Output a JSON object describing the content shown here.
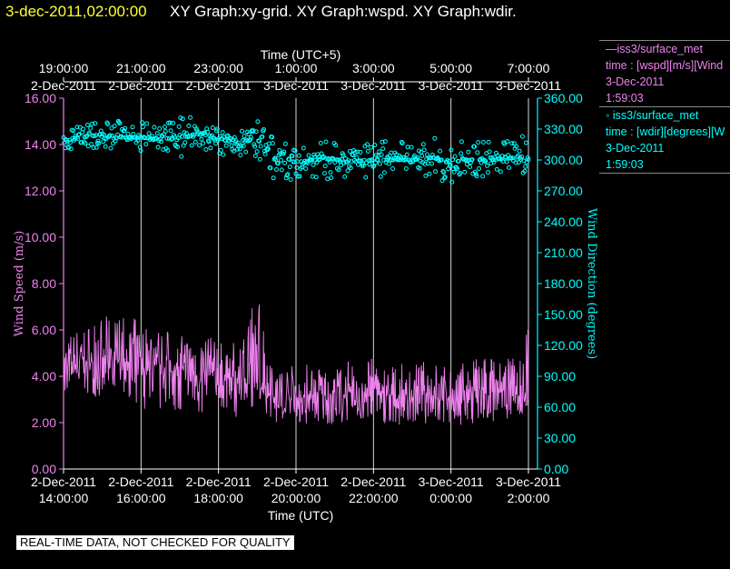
{
  "header": {
    "timestamp": "3-dec-2011,02:00:00",
    "title": "XY Graph:xy-grid.  XY Graph:wspd.  XY Graph:wdir."
  },
  "legend": {
    "items": [
      {
        "name": "—iss3/surface_met",
        "desc": "time : [wspd][m/s][Wind",
        "date": "3-Dec-2011",
        "time": "1:59:03"
      },
      {
        "name": "◦ iss3/surface_met",
        "desc": "time : [wdir][degrees][W",
        "date": "3-Dec-2011",
        "time": "1:59:03"
      }
    ]
  },
  "notice": "REAL-TIME DATA, NOT CHECKED FOR QUALITY",
  "colors": {
    "wspd": "#ee82ee",
    "wdir": "#00ffff",
    "axis": "#ffffff",
    "header_time": "#ffff33"
  },
  "chart_data": {
    "type": "line",
    "x_bottom": {
      "label": "Time (UTC)",
      "range": [
        "2-Dec-2011 14:00:00",
        "3-Dec-2011 02:00:00"
      ],
      "ticks": [
        {
          "value": "2-Dec-2011 14:00:00",
          "date": "2-Dec-2011",
          "time": "14:00:00"
        },
        {
          "value": "2-Dec-2011 16:00:00",
          "date": "2-Dec-2011",
          "time": "16:00:00"
        },
        {
          "value": "2-Dec-2011 18:00:00",
          "date": "2-Dec-2011",
          "time": "18:00:00"
        },
        {
          "value": "2-Dec-2011 20:00:00",
          "date": "2-Dec-2011",
          "time": "20:00:00"
        },
        {
          "value": "2-Dec-2011 22:00:00",
          "date": "2-Dec-2011",
          "time": "22:00:00"
        },
        {
          "value": "3-Dec-2011 00:00:00",
          "date": "3-Dec-2011",
          "time": "0:00:00"
        },
        {
          "value": "3-Dec-2011 02:00:00",
          "date": "3-Dec-2011",
          "time": "2:00:00"
        }
      ]
    },
    "x_top": {
      "label": "Time (UTC+5)",
      "ticks": [
        {
          "value": "2-Dec-2011 19:00:00",
          "date": "2-Dec-2011",
          "time": "19:00:00"
        },
        {
          "value": "2-Dec-2011 21:00:00",
          "date": "2-Dec-2011",
          "time": "21:00:00"
        },
        {
          "value": "2-Dec-2011 23:00:00",
          "date": "2-Dec-2011",
          "time": "23:00:00"
        },
        {
          "value": "3-Dec-2011 01:00:00",
          "date": "3-Dec-2011",
          "time": "1:00:00"
        },
        {
          "value": "3-Dec-2011 03:00:00",
          "date": "3-Dec-2011",
          "time": "3:00:00"
        },
        {
          "value": "3-Dec-2011 05:00:00",
          "date": "3-Dec-2011",
          "time": "5:00:00"
        },
        {
          "value": "3-Dec-2011 07:00:00",
          "date": "3-Dec-2011",
          "time": "7:00:00"
        }
      ]
    },
    "y_left": {
      "label": "Wind Speed (m/s)",
      "range": [
        0,
        16
      ],
      "ticks": [
        "0.00",
        "2.00",
        "4.00",
        "6.00",
        "8.00",
        "10.00",
        "12.00",
        "14.00",
        "16.00"
      ]
    },
    "y_right": {
      "label": "Wind Direction (degrees)",
      "range": [
        0,
        360
      ],
      "ticks": [
        "0.00",
        "30.00",
        "60.00",
        "90.00",
        "120.00",
        "150.00",
        "180.00",
        "210.00",
        "240.00",
        "270.00",
        "300.00",
        "330.00",
        "360.00"
      ]
    },
    "grid": {
      "vertical": true,
      "horizontal": false
    },
    "series": [
      {
        "name": "iss3/surface_met",
        "axis": "left",
        "style": "line",
        "x": [
          "2-Dec-2011 14:00:00",
          "2-Dec-2011 14:30:00",
          "2-Dec-2011 15:00:00",
          "2-Dec-2011 15:30:00",
          "2-Dec-2011 16:00:00",
          "2-Dec-2011 16:30:00",
          "2-Dec-2011 17:00:00",
          "2-Dec-2011 17:30:00",
          "2-Dec-2011 18:00:00",
          "2-Dec-2011 18:30:00",
          "2-Dec-2011 19:00:00",
          "2-Dec-2011 19:30:00",
          "2-Dec-2011 20:00:00",
          "2-Dec-2011 20:30:00",
          "2-Dec-2011 21:00:00",
          "2-Dec-2011 21:30:00",
          "2-Dec-2011 22:00:00",
          "2-Dec-2011 22:30:00",
          "2-Dec-2011 23:00:00",
          "2-Dec-2011 23:30:00",
          "3-Dec-2011 00:00:00",
          "3-Dec-2011 00:30:00",
          "3-Dec-2011 01:00:00",
          "3-Dec-2011 01:30:00",
          "3-Dec-2011 02:00:00"
        ],
        "values": [
          4.3,
          4.6,
          4.4,
          4.8,
          4.3,
          4.5,
          4.2,
          4.1,
          4.0,
          3.9,
          4.0,
          3.0,
          3.0,
          3.2,
          3.1,
          3.3,
          3.4,
          3.0,
          3.3,
          3.3,
          3.1,
          3.2,
          3.4,
          3.3,
          3.0
        ],
        "range_min": [
          3.0,
          3.2,
          3.0,
          3.3,
          2.4,
          2.5,
          2.3,
          2.1,
          2.4,
          2.2,
          2.8,
          1.9,
          1.8,
          2.0,
          1.9,
          2.0,
          2.1,
          1.8,
          2.0,
          1.9,
          1.8,
          1.9,
          2.0,
          2.0,
          2.5
        ],
        "range_max": [
          5.8,
          6.2,
          6.6,
          6.6,
          6.5,
          6.1,
          5.8,
          5.9,
          5.6,
          5.4,
          8.0,
          4.6,
          4.5,
          4.7,
          4.5,
          4.8,
          4.8,
          4.5,
          4.6,
          4.7,
          4.4,
          4.7,
          5.0,
          4.8,
          6.3
        ]
      },
      {
        "name": "iss3/surface_met",
        "axis": "right",
        "style": "markers",
        "x": [
          "2-Dec-2011 14:00:00",
          "2-Dec-2011 14:30:00",
          "2-Dec-2011 15:00:00",
          "2-Dec-2011 15:30:00",
          "2-Dec-2011 16:00:00",
          "2-Dec-2011 16:30:00",
          "2-Dec-2011 17:00:00",
          "2-Dec-2011 17:30:00",
          "2-Dec-2011 18:00:00",
          "2-Dec-2011 18:30:00",
          "2-Dec-2011 19:00:00",
          "2-Dec-2011 19:30:00",
          "2-Dec-2011 20:00:00",
          "2-Dec-2011 20:30:00",
          "2-Dec-2011 21:00:00",
          "2-Dec-2011 21:30:00",
          "2-Dec-2011 22:00:00",
          "2-Dec-2011 22:30:00",
          "2-Dec-2011 23:00:00",
          "2-Dec-2011 23:30:00",
          "3-Dec-2011 00:00:00",
          "3-Dec-2011 00:30:00",
          "3-Dec-2011 01:00:00",
          "3-Dec-2011 01:30:00",
          "3-Dec-2011 02:00:00"
        ],
        "values": [
          320,
          322,
          325,
          322,
          322,
          320,
          322,
          325,
          320,
          318,
          320,
          300,
          298,
          300,
          302,
          298,
          300,
          300,
          300,
          302,
          298,
          300,
          300,
          302,
          302
        ],
        "range_min": [
          305,
          308,
          310,
          305,
          305,
          305,
          303,
          305,
          305,
          305,
          303,
          278,
          280,
          280,
          282,
          280,
          282,
          280,
          282,
          282,
          278,
          282,
          283,
          283,
          285
        ],
        "range_max": [
          333,
          335,
          340,
          338,
          338,
          335,
          342,
          348,
          335,
          335,
          338,
          320,
          318,
          318,
          320,
          318,
          320,
          318,
          318,
          322,
          318,
          320,
          318,
          322,
          325
        ]
      }
    ]
  }
}
